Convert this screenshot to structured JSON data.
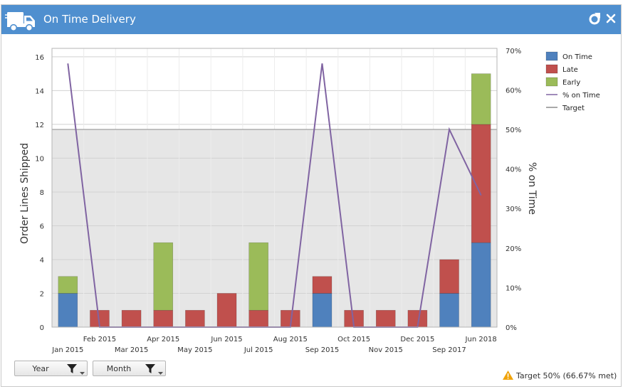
{
  "window": {
    "title": "On Time Delivery",
    "icon": "truck-icon"
  },
  "colors": {
    "header": "#4f8fcf",
    "on_time": "#4f81bd",
    "late": "#c0504d",
    "early": "#9bbb59",
    "pct_line": "#8064a2",
    "target_band": "#e6e6e6"
  },
  "filters": [
    {
      "label": "Year"
    },
    {
      "label": "Month"
    }
  ],
  "status": {
    "text": "Target 50% (66.67% met)",
    "icon": "warning-icon"
  },
  "chart_data": {
    "type": "bar",
    "stacked": true,
    "categories": [
      "Jan 2015",
      "Feb 2015",
      "Mar 2015",
      "Apr 2015",
      "May 2015",
      "Jun 2015",
      "Jul 2015",
      "Aug 2015",
      "Sep 2015",
      "Oct 2015",
      "Nov 2015",
      "Dec 2015",
      "Sep 2017",
      "Jun 2018"
    ],
    "series": [
      {
        "name": "On Time",
        "values": [
          2,
          0,
          0,
          0,
          0,
          0,
          0,
          0,
          2,
          0,
          0,
          0,
          2,
          5
        ]
      },
      {
        "name": "Late",
        "values": [
          0,
          1,
          1,
          1,
          1,
          2,
          1,
          1,
          1,
          1,
          1,
          1,
          2,
          7
        ]
      },
      {
        "name": "Early",
        "values": [
          1,
          0,
          0,
          4,
          0,
          0,
          4,
          0,
          0,
          0,
          0,
          0,
          0,
          3
        ]
      }
    ],
    "line_series": [
      {
        "name": "% on Time",
        "axis": "secondary",
        "values": [
          66.67,
          0,
          0,
          0,
          0,
          0,
          0,
          0,
          66.67,
          0,
          0,
          0,
          50,
          33.33
        ]
      }
    ],
    "target": {
      "name": "Target",
      "value": 50
    },
    "legend": [
      "On Time",
      "Late",
      "Early",
      "% on Time",
      "Target"
    ],
    "ylabel": "Order Lines Shipped",
    "y2label": "% on Time",
    "ylim": [
      0,
      16.5
    ],
    "yticks": [
      0,
      2,
      4,
      6,
      8,
      10,
      12,
      14,
      16
    ],
    "y2lim": [
      0,
      70.5
    ],
    "y2ticks": [
      "0%",
      "10%",
      "20%",
      "30%",
      "40%",
      "50%",
      "60%",
      "70%"
    ],
    "y2tick_values": [
      0,
      10,
      20,
      30,
      40,
      50,
      60,
      70
    ],
    "grid": true,
    "legend_position": "right"
  }
}
